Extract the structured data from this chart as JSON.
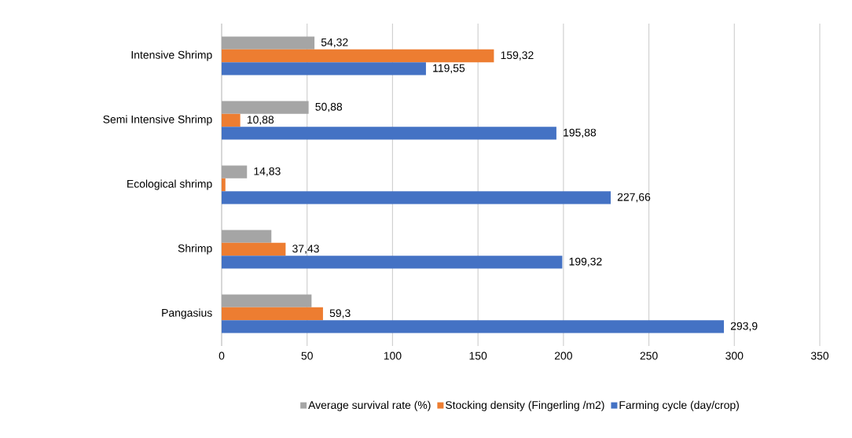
{
  "chart_data": {
    "type": "bar",
    "orientation": "horizontal",
    "categories": [
      "Intensive Shrimp",
      "Semi Intensive Shrimp",
      "Ecological shrimp",
      "Shrimp",
      "Pangasius"
    ],
    "series": [
      {
        "name": "Average survival rate (%)",
        "color": "#a5a5a5",
        "values": [
          54.32,
          50.88,
          14.83,
          29.1,
          52.6
        ],
        "value_labels": [
          "54,32",
          "50,88",
          "14,83",
          null,
          null
        ]
      },
      {
        "name": "Stocking density (Fingerling /m2)",
        "color": "#ed7d31",
        "values": [
          159.32,
          10.88,
          2.2,
          37.43,
          59.3
        ],
        "value_labels": [
          "159,32",
          "10,88",
          null,
          "37,43",
          "59,3"
        ]
      },
      {
        "name": "Farming cycle (day/crop)",
        "color": "#4472c4",
        "values": [
          119.55,
          195.88,
          227.66,
          199.32,
          293.9
        ],
        "value_labels": [
          "119,55",
          "195,88",
          "227,66",
          "199,32",
          "293,9"
        ]
      }
    ],
    "xlim": [
      0,
      350
    ],
    "xticks": [
      0,
      50,
      100,
      150,
      200,
      250,
      300,
      350
    ],
    "grid": "x",
    "legend": "bottom"
  }
}
